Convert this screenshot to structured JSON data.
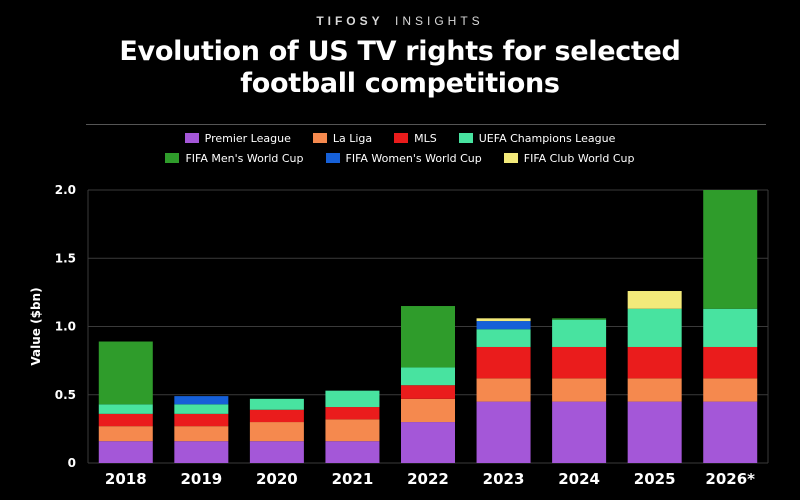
{
  "brand": {
    "bold": "TIFOSY",
    "light": "INSIGHTS"
  },
  "title_line1": "Evolution of US TV rights for selected",
  "title_line2": "football competitions",
  "chart_data": {
    "type": "bar",
    "stacked": true,
    "categories": [
      "2018",
      "2019",
      "2020",
      "2021",
      "2022",
      "2023",
      "2024",
      "2025",
      "2026*"
    ],
    "ylabel": "Value ($bn)",
    "ylim": [
      0,
      2.0
    ],
    "yticks": [
      "0",
      "0.5",
      "1.0",
      "1.5",
      "2.0"
    ],
    "ytick_values": [
      0,
      0.5,
      1.0,
      1.5,
      2.0
    ],
    "grid": true,
    "legend_position": "top",
    "series": [
      {
        "name": "Premier League",
        "color": "#a457d8",
        "values": [
          0.16,
          0.16,
          0.16,
          0.16,
          0.3,
          0.45,
          0.45,
          0.45,
          0.45
        ]
      },
      {
        "name": "La Liga",
        "color": "#f5894e",
        "values": [
          0.11,
          0.11,
          0.14,
          0.16,
          0.17,
          0.17,
          0.17,
          0.17,
          0.17
        ]
      },
      {
        "name": "MLS",
        "color": "#ea1c1c",
        "values": [
          0.09,
          0.09,
          0.09,
          0.09,
          0.1,
          0.23,
          0.23,
          0.23,
          0.23
        ]
      },
      {
        "name": "UEFA Champions League",
        "color": "#48e3a0",
        "values": [
          0.07,
          0.07,
          0.08,
          0.12,
          0.13,
          0.13,
          0.2,
          0.28,
          0.28
        ]
      },
      {
        "name": "FIFA Men's World Cup",
        "color": "#2f9c2b",
        "values": [
          0.46,
          0,
          0,
          0,
          0.45,
          0,
          0.01,
          0,
          0.87
        ]
      },
      {
        "name": "FIFA Women's World Cup",
        "color": "#1660d8",
        "values": [
          0,
          0.06,
          0,
          0,
          0,
          0.06,
          0,
          0,
          0
        ]
      },
      {
        "name": "FIFA Club World Cup",
        "color": "#f3ea7a",
        "values": [
          0,
          0,
          0,
          0,
          0,
          0.02,
          0,
          0.13,
          0
        ]
      }
    ]
  },
  "legend_rows": [
    [
      "Premier League",
      "La Liga",
      "MLS",
      "UEFA Champions League"
    ],
    [
      "FIFA Men's World Cup",
      "FIFA Women's World Cup",
      "FIFA Club World Cup"
    ]
  ]
}
